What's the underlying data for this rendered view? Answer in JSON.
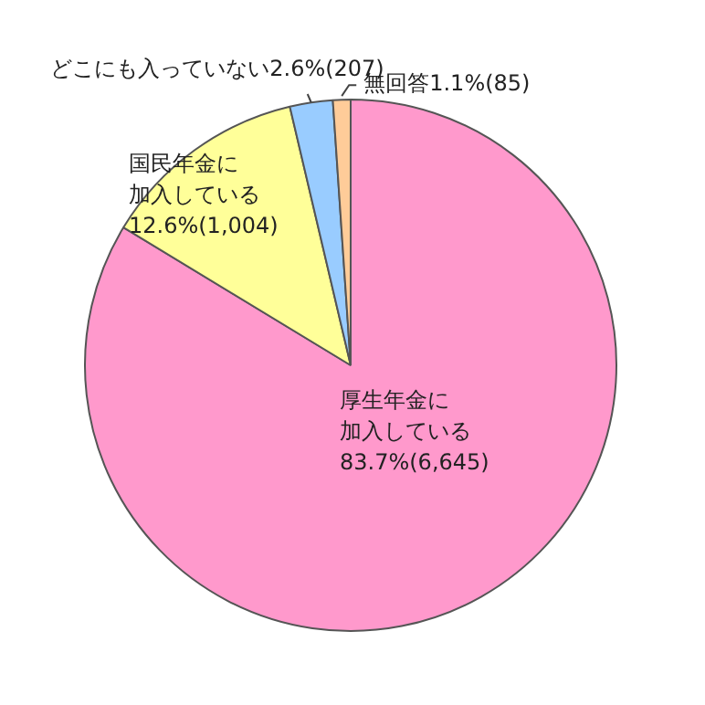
{
  "chart_data": {
    "type": "pie",
    "categories": [
      "厚生年金に加入している",
      "国民年金に加入している",
      "どこにも入っていない",
      "無回答"
    ],
    "values": [
      6645,
      1004,
      207,
      85
    ],
    "value_labels": [
      "83.7%(6,645)",
      "12.6%(1,004)",
      "2.6%(207)",
      "1.1%(85)"
    ],
    "colors": [
      "#ff99cc",
      "#ffff99",
      "#99ccff",
      "#ffcc99"
    ],
    "legend": false
  }
}
